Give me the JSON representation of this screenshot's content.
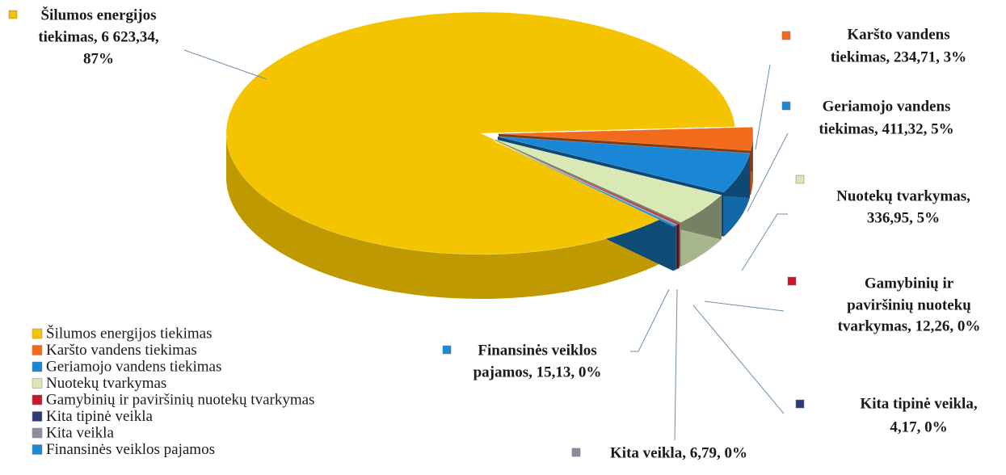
{
  "chart_data": {
    "type": "pie3d",
    "categories": [
      "Šilumos energijos tiekimas",
      "Karšto vandens tiekimas",
      "Geriamojo vandens tiekimas",
      "Nuotekų tvarkymas",
      "Gamybinių ir paviršinių nuotekų tvarkymas",
      "Kita tipinė veikla",
      "Kita veikla",
      "Finansinės veiklos pajamos"
    ],
    "values": [
      6623.34,
      234.71,
      411.32,
      336.95,
      12.26,
      4.17,
      6.79,
      15.13
    ],
    "value_labels": [
      "6 623,34",
      "234,71",
      "411,32",
      "336,95",
      "12,26",
      "4,17",
      "6,79",
      "15,13"
    ],
    "data_labels": [
      [
        "Šilumos energijos",
        "tiekimas, 6 623,34,",
        "87%"
      ],
      [
        "Karšto vandens",
        "tiekimas, 234,71, 3%"
      ],
      [
        "Geriamojo vandens",
        "tiekimas, 411,32, 5%"
      ],
      [
        "Nuotekų tvarkymas,",
        "336,95, 5%"
      ],
      [
        "Gamybinių ir",
        "paviršinių nuotekų",
        "tvarkymas, 12,26, 0%"
      ],
      [
        "Kita tipinė veikla,",
        "4,17, 0%"
      ],
      [
        "Kita veikla, 6,79, 0%"
      ],
      [
        "Finansinės veiklos",
        "pajamos, 15,13, 0%"
      ]
    ],
    "colors": [
      "#f5c400",
      "#f26b1d",
      "#1a86d6",
      "#d8e9b6",
      "#c8182a",
      "#2e3a78",
      "#8c8c9c",
      "#1a8ad6"
    ],
    "legend": "bottom-left"
  }
}
